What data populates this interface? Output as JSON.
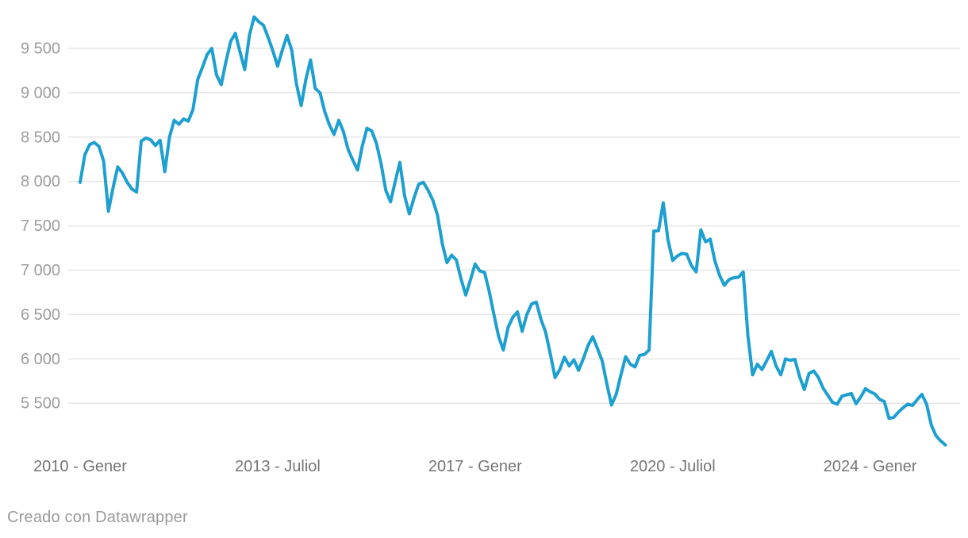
{
  "footer": {
    "credit": "Creado con Datawrapper"
  },
  "colors": {
    "line": "#1d9fd0",
    "grid": "#e6e6e6",
    "y_label": "#9c9c9c",
    "x_label": "#757575",
    "footer": "#9a9a9a",
    "background": "#ffffff"
  },
  "chart_data": {
    "type": "line",
    "title": "",
    "frequency": "monthly",
    "x_start": "2010 - Gener",
    "x_end": "2025",
    "grid": true,
    "legend": false,
    "ylim": [
      5500,
      9500
    ],
    "y_ticks": [
      5500,
      6000,
      6500,
      7000,
      7500,
      8000,
      8500,
      9000,
      9500
    ],
    "y_tick_labels": [
      "5 500",
      "6 000",
      "6 500",
      "7 000",
      "7 500",
      "8 000",
      "8 500",
      "9 000",
      "9 500"
    ],
    "x_ticks": [
      {
        "label": "2010 - Gener",
        "month_index": 0
      },
      {
        "label": "2013 - Juliol",
        "month_index": 42
      },
      {
        "label": "2017 - Gener",
        "month_index": 84
      },
      {
        "label": "2020 - Juliol",
        "month_index": 126
      },
      {
        "label": "2024 - Gener",
        "month_index": 168
      }
    ],
    "series": [
      {
        "name": "",
        "values": [
          7990,
          8300,
          8415,
          8440,
          8395,
          8230,
          7665,
          7930,
          8165,
          8095,
          7990,
          7915,
          7880,
          8455,
          8490,
          8470,
          8405,
          8465,
          8110,
          8500,
          8690,
          8645,
          8705,
          8680,
          8810,
          9150,
          9285,
          9430,
          9500,
          9200,
          9090,
          9350,
          9580,
          9670,
          9460,
          9260,
          9650,
          9855,
          9800,
          9760,
          9620,
          9470,
          9300,
          9480,
          9645,
          9480,
          9100,
          8855,
          9150,
          9370,
          9050,
          9000,
          8790,
          8640,
          8530,
          8690,
          8560,
          8360,
          8240,
          8130,
          8400,
          8600,
          8570,
          8430,
          8200,
          7900,
          7770,
          8000,
          8215,
          7840,
          7635,
          7815,
          7970,
          7990,
          7900,
          7790,
          7620,
          7300,
          7085,
          7170,
          7115,
          6900,
          6720,
          6890,
          7070,
          6990,
          6975,
          6760,
          6500,
          6250,
          6100,
          6355,
          6470,
          6530,
          6310,
          6500,
          6620,
          6640,
          6445,
          6300,
          6050,
          5790,
          5880,
          6020,
          5920,
          5990,
          5870,
          6000,
          6150,
          6250,
          6120,
          5980,
          5720,
          5480,
          5600,
          5820,
          6025,
          5940,
          5910,
          6040,
          6050,
          6100,
          7440,
          7445,
          7760,
          7345,
          7110,
          7160,
          7190,
          7180,
          7050,
          6980,
          7455,
          7320,
          7350,
          7100,
          6940,
          6830,
          6895,
          6915,
          6920,
          6980,
          6265,
          5820,
          5940,
          5880,
          5980,
          6085,
          5920,
          5820,
          6000,
          5985,
          5995,
          5800,
          5655,
          5835,
          5865,
          5790,
          5670,
          5590,
          5510,
          5490,
          5580,
          5595,
          5610,
          5495,
          5570,
          5665,
          5630,
          5605,
          5545,
          5520,
          5330,
          5340,
          5400,
          5450,
          5490,
          5475,
          5540,
          5600,
          5490,
          5255,
          5135,
          5075,
          5030
        ]
      }
    ]
  }
}
